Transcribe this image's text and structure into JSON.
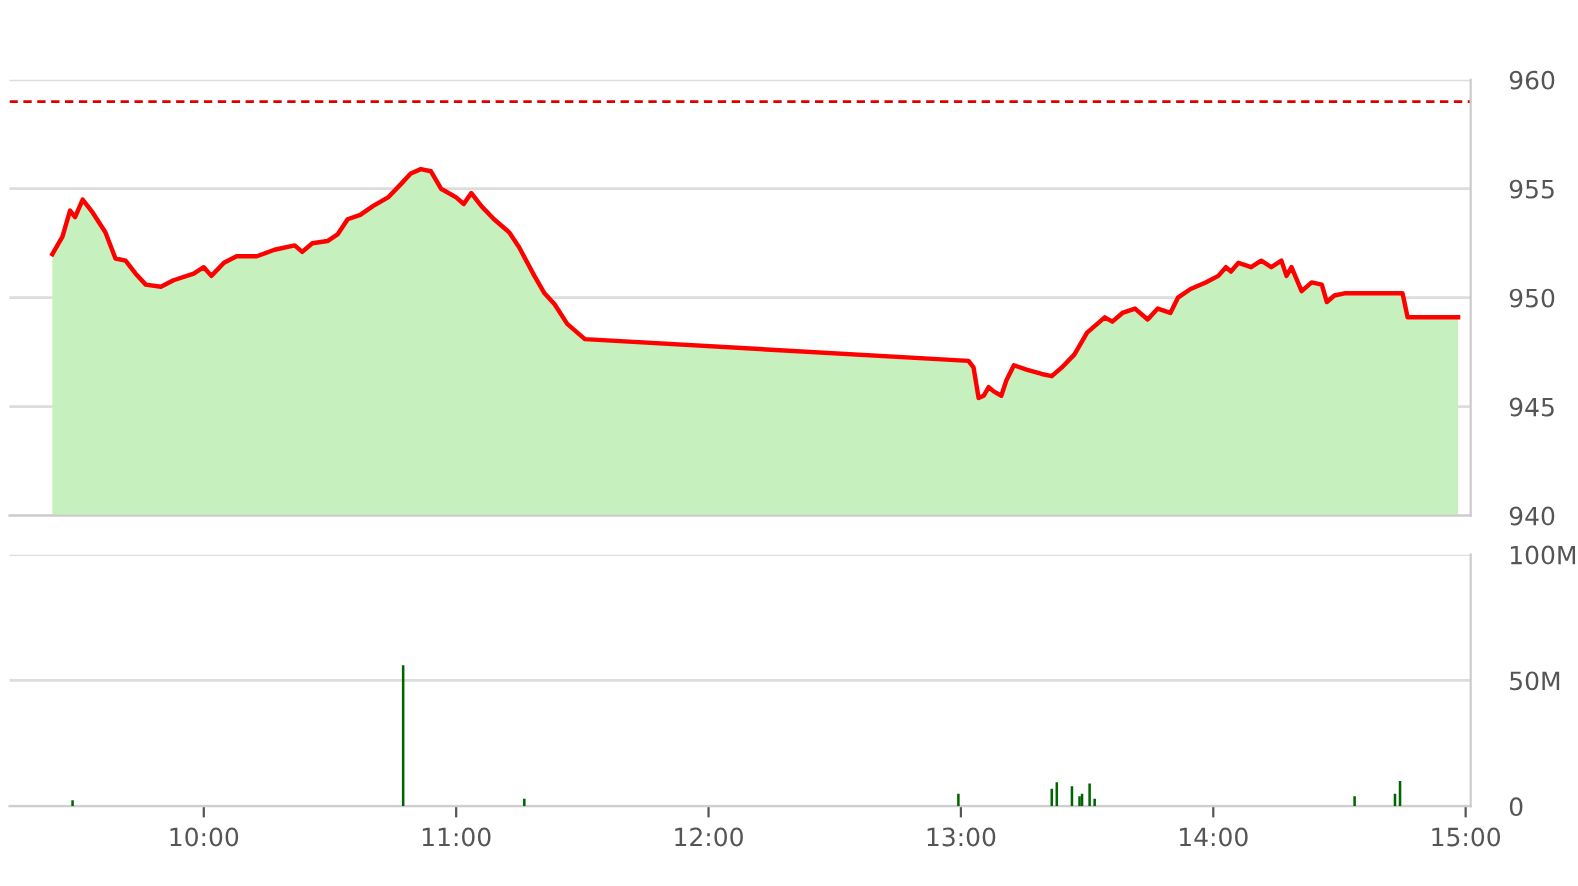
{
  "chart_data": [
    {
      "type": "area",
      "xlim": [
        9.23,
        15.02
      ],
      "ylim": [
        940,
        960
      ],
      "yticks": [
        940,
        945,
        950,
        955,
        960
      ],
      "grid": "y",
      "tick_labels": "y",
      "ref_lines": [
        {
          "axis": "y",
          "value": 959.0,
          "color": "#dd0000",
          "line_style": "dashed"
        }
      ],
      "series": [
        {
          "color": "#c6f0bd",
          "x": [
            9.4,
            9.44,
            9.47,
            9.49,
            9.52,
            9.56,
            9.61,
            9.65,
            9.69,
            9.73,
            9.77,
            9.83,
            9.88,
            9.96,
            10.0,
            10.03,
            10.08,
            10.13,
            10.21,
            10.28,
            10.36,
            10.39,
            10.43,
            10.49,
            10.53,
            10.57,
            10.62,
            10.67,
            10.73,
            10.78,
            10.82,
            10.86,
            10.9,
            10.94,
            11.0,
            11.03,
            11.06,
            11.1,
            11.15,
            11.21,
            11.25,
            11.31,
            11.35,
            11.39,
            11.44,
            11.51,
            13.03,
            13.05,
            13.07,
            13.09,
            13.11,
            13.13,
            13.16,
            13.18,
            13.21,
            13.26,
            13.32,
            13.36,
            13.4,
            13.45,
            13.5,
            13.57,
            13.6,
            13.64,
            13.69,
            13.74,
            13.78,
            13.83,
            13.86,
            13.91,
            13.97,
            14.02,
            14.05,
            14.07,
            14.1,
            14.15,
            14.19,
            14.23,
            14.27,
            14.29,
            14.31,
            14.35,
            14.39,
            14.43,
            14.45,
            14.48,
            14.52,
            14.75,
            14.77,
            14.97
          ],
          "values": [
            952.0,
            952.8,
            954.0,
            953.7,
            954.5,
            953.9,
            953.0,
            951.8,
            951.7,
            951.1,
            950.6,
            950.5,
            950.8,
            951.1,
            951.4,
            951.0,
            951.6,
            951.9,
            951.9,
            952.2,
            952.4,
            952.1,
            952.5,
            952.6,
            952.9,
            953.6,
            953.8,
            954.2,
            954.6,
            955.2,
            955.7,
            955.9,
            955.8,
            955.0,
            954.6,
            954.3,
            954.8,
            954.2,
            953.6,
            953.0,
            952.3,
            951.0,
            950.2,
            949.7,
            948.8,
            948.1,
            947.1,
            946.8,
            945.4,
            945.5,
            945.9,
            945.7,
            945.5,
            946.2,
            946.9,
            946.7,
            946.5,
            946.4,
            946.8,
            947.4,
            948.4,
            949.1,
            948.9,
            949.3,
            949.5,
            949.0,
            949.5,
            949.3,
            950.0,
            950.4,
            950.7,
            951.0,
            951.4,
            951.2,
            951.6,
            951.4,
            951.7,
            951.4,
            951.7,
            951.0,
            951.4,
            950.3,
            950.7,
            950.6,
            949.8,
            950.1,
            950.2,
            950.2,
            949.1,
            949.1
          ]
        },
        {
          "type": "line",
          "color": "#ff0000",
          "x": [
            9.4,
            9.44,
            9.47,
            9.49,
            9.52,
            9.56,
            9.61,
            9.65,
            9.69,
            9.73,
            9.77,
            9.83,
            9.88,
            9.96,
            10.0,
            10.03,
            10.08,
            10.13,
            10.21,
            10.28,
            10.36,
            10.39,
            10.43,
            10.49,
            10.53,
            10.57,
            10.62,
            10.67,
            10.73,
            10.78,
            10.82,
            10.86,
            10.9,
            10.94,
            11.0,
            11.03,
            11.06,
            11.1,
            11.15,
            11.21,
            11.25,
            11.31,
            11.35,
            11.39,
            11.44,
            11.51,
            13.03,
            13.05,
            13.07,
            13.09,
            13.11,
            13.13,
            13.16,
            13.18,
            13.21,
            13.26,
            13.32,
            13.36,
            13.4,
            13.45,
            13.5,
            13.57,
            13.6,
            13.64,
            13.69,
            13.74,
            13.78,
            13.83,
            13.86,
            13.91,
            13.97,
            14.02,
            14.05,
            14.07,
            14.1,
            14.15,
            14.19,
            14.23,
            14.27,
            14.29,
            14.31,
            14.35,
            14.39,
            14.43,
            14.45,
            14.48,
            14.52,
            14.75,
            14.77,
            14.97
          ],
          "values": [
            952.0,
            952.8,
            954.0,
            953.7,
            954.5,
            953.9,
            953.0,
            951.8,
            951.7,
            951.1,
            950.6,
            950.5,
            950.8,
            951.1,
            951.4,
            951.0,
            951.6,
            951.9,
            951.9,
            952.2,
            952.4,
            952.1,
            952.5,
            952.6,
            952.9,
            953.6,
            953.8,
            954.2,
            954.6,
            955.2,
            955.7,
            955.9,
            955.8,
            955.0,
            954.6,
            954.3,
            954.8,
            954.2,
            953.6,
            953.0,
            952.3,
            951.0,
            950.2,
            949.7,
            948.8,
            948.1,
            947.1,
            946.8,
            945.4,
            945.5,
            945.9,
            945.7,
            945.5,
            946.2,
            946.9,
            946.7,
            946.5,
            946.4,
            946.8,
            947.4,
            948.4,
            949.1,
            948.9,
            949.3,
            949.5,
            949.0,
            949.5,
            949.3,
            950.0,
            950.4,
            950.7,
            951.0,
            951.4,
            951.2,
            951.6,
            951.4,
            951.7,
            951.4,
            951.7,
            951.0,
            951.4,
            950.3,
            950.7,
            950.6,
            949.8,
            950.1,
            950.2,
            950.2,
            949.1,
            949.1
          ]
        }
      ]
    },
    {
      "type": "bar",
      "xlim": [
        9.23,
        15.02
      ],
      "ylim": [
        0,
        100
      ],
      "yticks": [
        {
          "value": 0,
          "label": "0"
        },
        {
          "value": 50,
          "label": "50M"
        },
        {
          "value": 100,
          "label": "100M"
        }
      ],
      "xticks": [
        {
          "value": 10,
          "label": "10:00"
        },
        {
          "value": 11,
          "label": "11:00"
        },
        {
          "value": 12,
          "label": "12:00"
        },
        {
          "value": 13,
          "label": "13:00"
        },
        {
          "value": 14,
          "label": "14:00"
        },
        {
          "value": 15,
          "label": "15:00"
        }
      ],
      "grid": "y",
      "series": [
        {
          "color": "#006400",
          "x": [
            9.48,
            10.79,
            11.27,
            12.99,
            13.36,
            13.38,
            13.44,
            13.47,
            13.48,
            13.51,
            13.53,
            14.56,
            14.72,
            14.74
          ],
          "values": [
            2.4,
            56,
            3,
            5,
            7,
            9.5,
            8,
            4,
            5,
            9,
            3,
            4,
            5,
            10
          ]
        }
      ]
    }
  ]
}
